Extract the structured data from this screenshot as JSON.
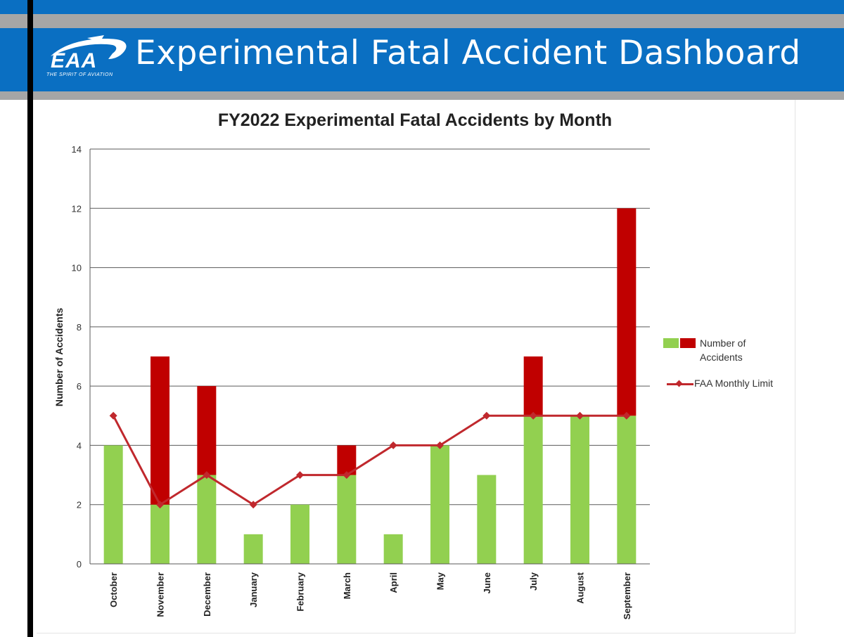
{
  "header": {
    "logo_text": "EAA",
    "logo_tagline": "THE SPIRIT OF AVIATION",
    "title": "Experimental Fatal Accident Dashboard"
  },
  "colors": {
    "header_blue": "#0a6fc2",
    "band_gray": "#a6a6a6",
    "within_limit": "#92d050",
    "over_limit": "#c00000",
    "limit_line": "#c0282d"
  },
  "chart_data": {
    "type": "bar",
    "title": "FY2022 Experimental Fatal Accidents by Month",
    "ylabel": "Number of Accidents",
    "xlabel": "",
    "ylim": [
      0,
      14
    ],
    "yticks": [
      0,
      2,
      4,
      6,
      8,
      10,
      12,
      14
    ],
    "grid": true,
    "legend_position": "right",
    "categories": [
      "October",
      "November",
      "December",
      "January",
      "February",
      "March",
      "April",
      "May",
      "June",
      "July",
      "August",
      "September"
    ],
    "series": [
      {
        "name": "Number of Accidents",
        "type": "stacked-bar",
        "values": [
          4,
          7,
          6,
          1,
          2,
          4,
          1,
          4,
          3,
          7,
          5,
          12
        ]
      },
      {
        "name": "FAA Monthly Limit",
        "type": "line",
        "values": [
          5,
          2,
          3,
          2,
          3,
          3,
          4,
          4,
          5,
          5,
          5,
          5
        ]
      }
    ]
  },
  "legend": {
    "item1": "Number of Accidents",
    "item2": "FAA Monthly Limit"
  }
}
